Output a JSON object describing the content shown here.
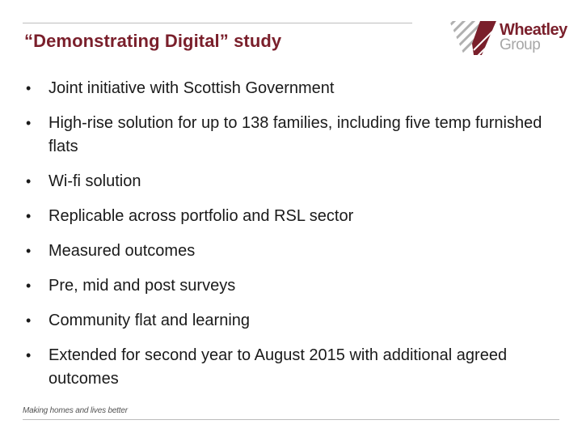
{
  "slide": {
    "title": "“Demonstrating Digital” study",
    "logo": {
      "line1": "Wheatley",
      "line2": "Group",
      "icon": "striped-chevron-logo-icon",
      "colors": {
        "maroon": "#7a1f2b",
        "grey": "#a7a7a7"
      }
    },
    "bullet_glyph": "•",
    "bullets": [
      "Joint initiative with Scottish Government",
      "High-rise solution for up to 138 families, including five temp furnished flats",
      "Wi-fi solution",
      "Replicable across portfolio and RSL sector",
      "Measured outcomes",
      "Pre, mid and post surveys",
      "Community flat and learning",
      "Extended for second year to August 2015 with additional agreed outcomes"
    ],
    "footer": "Making homes and lives better"
  }
}
